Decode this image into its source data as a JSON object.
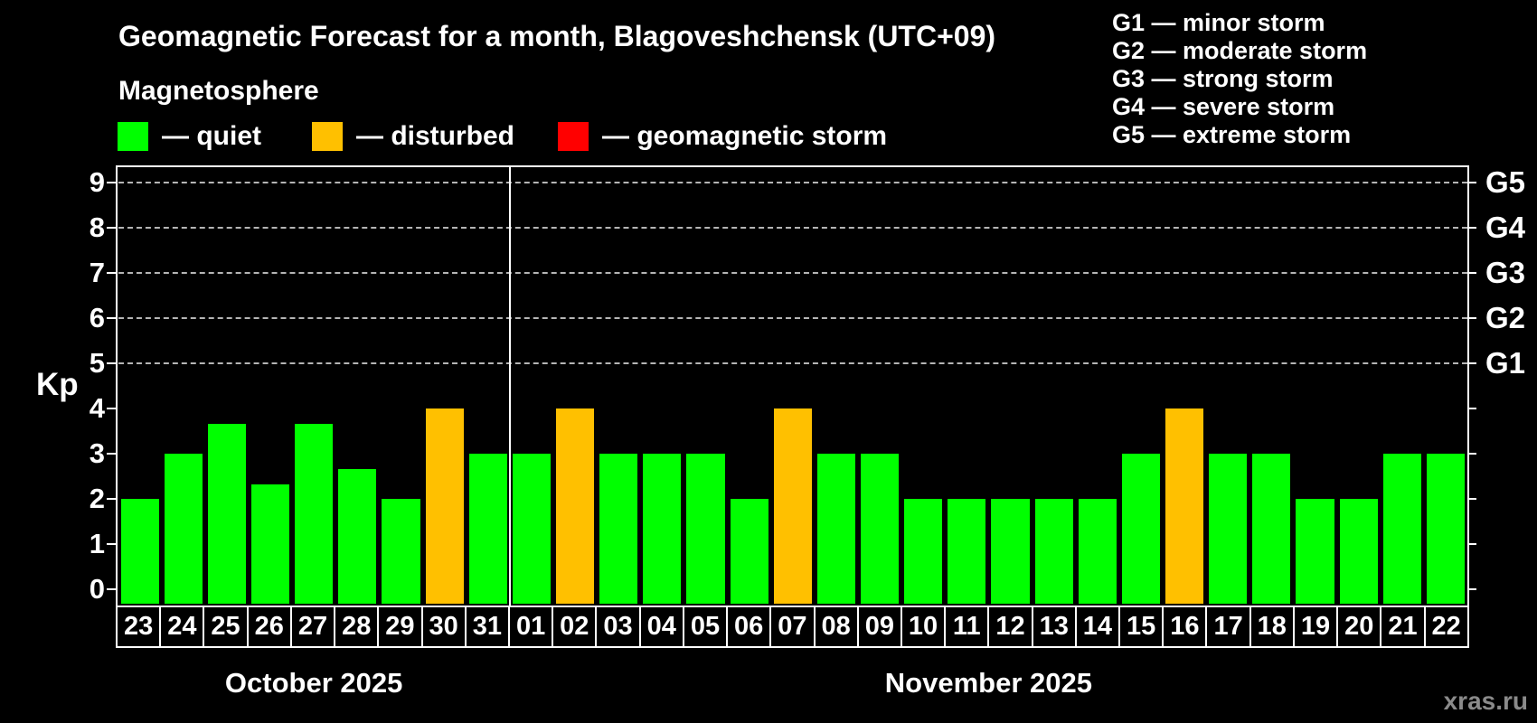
{
  "header": {
    "title": "Geomagnetic Forecast for a month, Blagoveshchensk (UTC+09)",
    "subtitle": "Magnetosphere",
    "legend": [
      {
        "status": "quiet",
        "label": "— quiet",
        "color": "#00ff00"
      },
      {
        "status": "disturbed",
        "label": "— disturbed",
        "color": "#ffc000"
      },
      {
        "status": "storm",
        "label": "— geomagnetic storm",
        "color": "#ff0000"
      }
    ],
    "storm_scale": [
      "G1 — minor storm",
      "G2 — moderate storm",
      "G3 — strong storm",
      "G4 — severe storm",
      "G5 — extreme storm"
    ]
  },
  "watermark": "xras.ru",
  "chart_data": {
    "type": "bar",
    "title": "Geomagnetic Forecast for a month, Blagoveshchensk (UTC+09)",
    "ylabel": "Kp",
    "ylim": [
      0,
      9
    ],
    "yticks": [
      0,
      1,
      2,
      3,
      4,
      5,
      6,
      7,
      8,
      9
    ],
    "gridlines_at_kp": [
      5,
      6,
      7,
      8,
      9
    ],
    "grid": "dashed horizontal at storm levels only",
    "legend_position": "top",
    "right_axis_labels": [
      {
        "label": "G1",
        "kp": 5
      },
      {
        "label": "G2",
        "kp": 6
      },
      {
        "label": "G3",
        "kp": 7
      },
      {
        "label": "G4",
        "kp": 8
      },
      {
        "label": "G5",
        "kp": 9
      }
    ],
    "status_colors": {
      "quiet": "#00ff00",
      "disturbed": "#ffc000",
      "storm": "#ff0000"
    },
    "groups": [
      {
        "month": "October 2025",
        "days": [
          {
            "day": "23",
            "kp": 2.0,
            "status": "quiet"
          },
          {
            "day": "24",
            "kp": 3.0,
            "status": "quiet"
          },
          {
            "day": "25",
            "kp": 3.67,
            "status": "quiet"
          },
          {
            "day": "26",
            "kp": 2.33,
            "status": "quiet"
          },
          {
            "day": "27",
            "kp": 3.67,
            "status": "quiet"
          },
          {
            "day": "28",
            "kp": 2.67,
            "status": "quiet"
          },
          {
            "day": "29",
            "kp": 2.0,
            "status": "quiet"
          },
          {
            "day": "30",
            "kp": 4.0,
            "status": "disturbed"
          },
          {
            "day": "31",
            "kp": 3.0,
            "status": "quiet"
          }
        ]
      },
      {
        "month": "November 2025",
        "days": [
          {
            "day": "01",
            "kp": 3.0,
            "status": "quiet"
          },
          {
            "day": "02",
            "kp": 4.0,
            "status": "disturbed"
          },
          {
            "day": "03",
            "kp": 3.0,
            "status": "quiet"
          },
          {
            "day": "04",
            "kp": 3.0,
            "status": "quiet"
          },
          {
            "day": "05",
            "kp": 3.0,
            "status": "quiet"
          },
          {
            "day": "06",
            "kp": 2.0,
            "status": "quiet"
          },
          {
            "day": "07",
            "kp": 4.0,
            "status": "disturbed"
          },
          {
            "day": "08",
            "kp": 3.0,
            "status": "quiet"
          },
          {
            "day": "09",
            "kp": 3.0,
            "status": "quiet"
          },
          {
            "day": "10",
            "kp": 2.0,
            "status": "quiet"
          },
          {
            "day": "11",
            "kp": 2.0,
            "status": "quiet"
          },
          {
            "day": "12",
            "kp": 2.0,
            "status": "quiet"
          },
          {
            "day": "13",
            "kp": 2.0,
            "status": "quiet"
          },
          {
            "day": "14",
            "kp": 2.0,
            "status": "quiet"
          },
          {
            "day": "15",
            "kp": 3.0,
            "status": "quiet"
          },
          {
            "day": "16",
            "kp": 4.0,
            "status": "disturbed"
          },
          {
            "day": "17",
            "kp": 3.0,
            "status": "quiet"
          },
          {
            "day": "18",
            "kp": 3.0,
            "status": "quiet"
          },
          {
            "day": "19",
            "kp": 2.0,
            "status": "quiet"
          },
          {
            "day": "20",
            "kp": 2.0,
            "status": "quiet"
          },
          {
            "day": "21",
            "kp": 3.0,
            "status": "quiet"
          },
          {
            "day": "22",
            "kp": 3.0,
            "status": "quiet"
          }
        ]
      }
    ]
  }
}
